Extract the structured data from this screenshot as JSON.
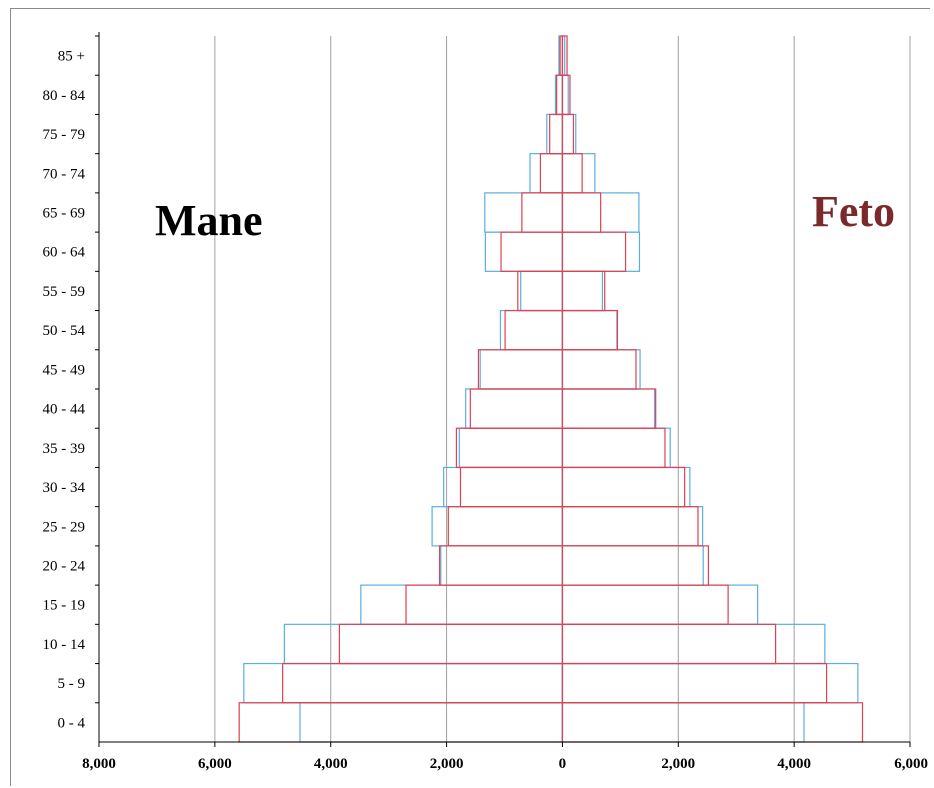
{
  "chart_data": {
    "type": "bar",
    "orientation": "horizontal-pyramid",
    "categories": [
      "0 - 4",
      "5 - 9",
      "10 - 14",
      "15 - 19",
      "20 - 24",
      "25 - 29",
      "30 - 34",
      "35 - 39",
      "40 - 44",
      "45 - 49",
      "50 - 54",
      "55 - 59",
      "60 - 64",
      "65 - 69",
      "70 - 74",
      "75 - 79",
      "80 - 84",
      "85 +"
    ],
    "left_label": "Mane",
    "right_label": "Feto",
    "series": [
      {
        "side": "left",
        "color": "#5aaee0",
        "values": [
          4530,
          5500,
          4800,
          3480,
          2100,
          2250,
          2050,
          1780,
          1670,
          1420,
          1070,
          720,
          1330,
          1340,
          560,
          270,
          120,
          60
        ]
      },
      {
        "side": "left",
        "color": "#e04050",
        "values": [
          5580,
          4830,
          3850,
          2700,
          2120,
          1970,
          1760,
          1830,
          1590,
          1450,
          990,
          770,
          1060,
          700,
          380,
          220,
          100,
          40
        ]
      },
      {
        "side": "right",
        "color": "#5aaee0",
        "values": [
          4170,
          5100,
          4530,
          3370,
          2430,
          2420,
          2200,
          1860,
          1590,
          1340,
          940,
          690,
          1330,
          1320,
          560,
          230,
          100,
          40
        ]
      },
      {
        "side": "right",
        "color": "#e04050",
        "values": [
          5180,
          4560,
          3680,
          2860,
          2520,
          2340,
          2110,
          1770,
          1610,
          1270,
          950,
          730,
          1090,
          660,
          340,
          190,
          130,
          80
        ]
      }
    ],
    "x_ticks": [
      "8,000",
      "6,000",
      "4,000",
      "2,000",
      "0",
      "2,000",
      "4,000",
      "6,000"
    ],
    "xlim": [
      -8000,
      6000
    ],
    "grid": "vertical",
    "legend": "none"
  },
  "colors": {
    "male_label": "#000000",
    "female_label": "#7a2a2a",
    "grid": "#a0a0a0",
    "axis": "#000000"
  }
}
